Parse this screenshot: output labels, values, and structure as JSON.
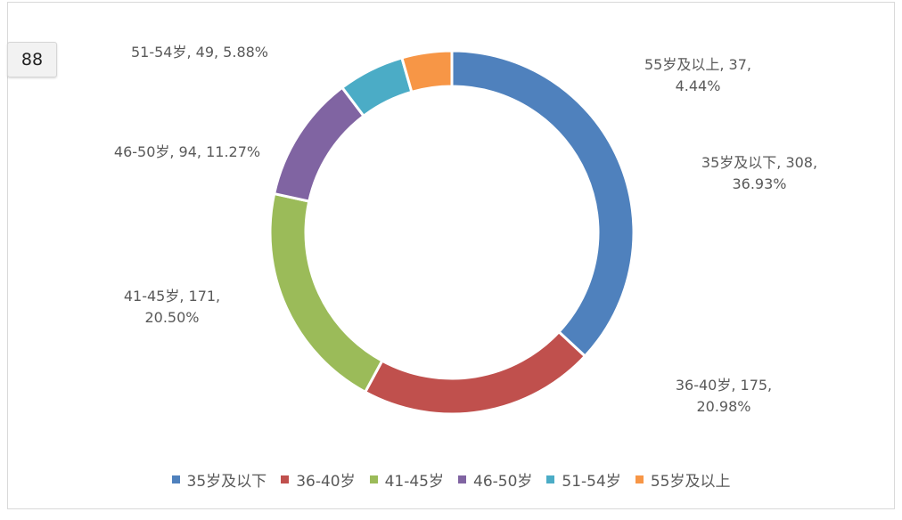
{
  "page_badge": "88",
  "chart_data": {
    "type": "pie",
    "subtype": "donut",
    "categories": [
      "35岁及以下",
      "36-40岁",
      "41-45岁",
      "46-50岁",
      "51-54岁",
      "55岁及以上"
    ],
    "values": [
      308,
      175,
      171,
      94,
      49,
      37
    ],
    "percents": [
      "36.93%",
      "20.98%",
      "20.50%",
      "11.27%",
      "5.88%",
      "4.44%"
    ],
    "colors": [
      "#4f81bd",
      "#c0504d",
      "#9bbb59",
      "#8064a2",
      "#4bacc6",
      "#f79646"
    ],
    "data_labels": [
      [
        "35岁及以下, 308,",
        "36.93%"
      ],
      [
        "36-40岁, 175,",
        "20.98%"
      ],
      [
        "41-45岁, 171,",
        "20.50%"
      ],
      [
        "46-50岁, 94, 11.27%"
      ],
      [
        "51-54岁, 49, 5.88%"
      ],
      [
        "55岁及以上, 37,",
        "4.44%"
      ]
    ],
    "legend_position": "bottom",
    "title": ""
  }
}
